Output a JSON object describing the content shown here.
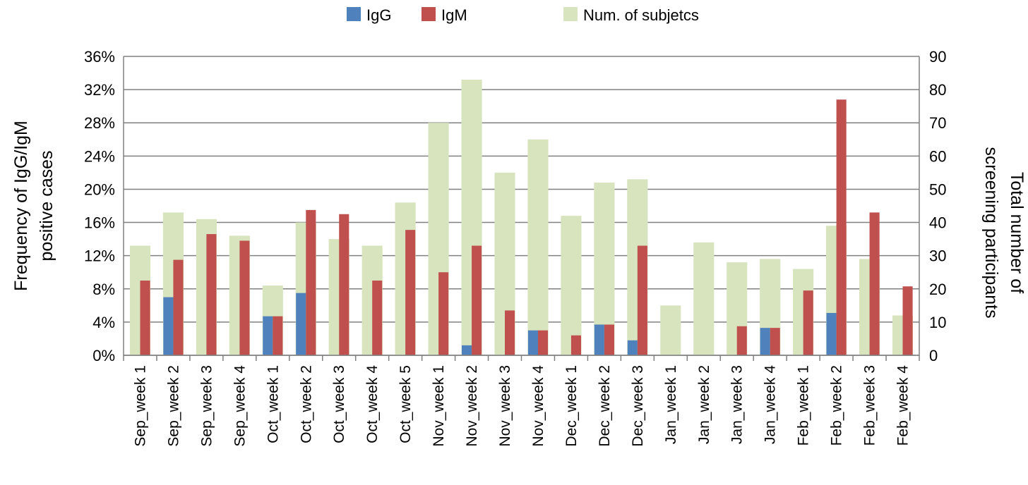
{
  "chart_data": {
    "type": "bar",
    "categories": [
      "Sep_week 1",
      "Sep_week 2",
      "Sep_week 3",
      "Sep_week 4",
      "Oct_week 1",
      "Oct_week 2",
      "Oct_week 3",
      "Oct_week 4",
      "Oct_week 5",
      "Nov_week 1",
      "Nov_week 2",
      "Nov_week 3",
      "Nov_week 4",
      "Dec_week 1",
      "Dec_week 2",
      "Dec_week 3",
      "Jan_week 1",
      "Jan_week 2",
      "Jan_week 3",
      "Jan_week 4",
      "Feb_week 1",
      "Feb_week 2",
      "Feb_week 3",
      "Feb_week 4"
    ],
    "series": [
      {
        "name": "IgG",
        "axis": "left",
        "unit": "%",
        "color": "#4f81bd",
        "values": [
          0,
          7.0,
          0,
          0,
          4.7,
          7.5,
          0,
          0,
          0,
          0,
          1.2,
          0,
          3.0,
          0,
          3.7,
          1.8,
          0,
          0,
          0,
          3.3,
          0,
          5.1,
          0,
          0
        ]
      },
      {
        "name": "IgM",
        "axis": "left",
        "unit": "%",
        "color": "#c0504d",
        "values": [
          9.0,
          11.5,
          14.6,
          13.8,
          4.7,
          17.5,
          17.0,
          9.0,
          15.1,
          10.0,
          13.2,
          5.4,
          3.0,
          2.4,
          3.7,
          13.2,
          0,
          0,
          3.5,
          3.3,
          7.8,
          30.8,
          17.2,
          8.3
        ]
      },
      {
        "name": "Num. of subjetcs",
        "axis": "right",
        "color": "#d7e4bd",
        "values": [
          33,
          43,
          41,
          36,
          21,
          40,
          35,
          33,
          46,
          70,
          83,
          55,
          65,
          42,
          52,
          53,
          15,
          34,
          28,
          29,
          26,
          39,
          29,
          12
        ]
      }
    ],
    "legend": [
      "IgG",
      "IgM",
      "Num. of subjetcs"
    ],
    "legend_position": "top-center",
    "left_axis": {
      "label_lines": [
        "Frequency of IgG/IgM",
        "positive cases"
      ],
      "ticks": [
        "0%",
        "4%",
        "8%",
        "12%",
        "16%",
        "20%",
        "24%",
        "28%",
        "32%",
        "36%"
      ],
      "ylim": [
        0,
        36
      ]
    },
    "right_axis": {
      "label_lines": [
        "Total number of",
        "screening participants"
      ],
      "ticks": [
        "0",
        "10",
        "20",
        "30",
        "40",
        "50",
        "60",
        "70",
        "80",
        "90"
      ],
      "ylim": [
        0,
        90
      ]
    },
    "grid": true
  }
}
